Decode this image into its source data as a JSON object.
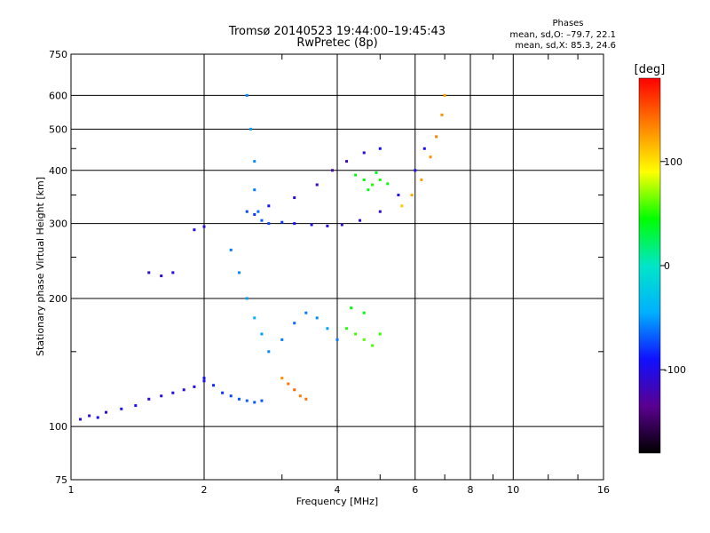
{
  "chart_data": {
    "type": "scatter",
    "title": "Tromsø 20140523 19:44:00–19:45:43",
    "subtitle": "RwPretec (8p)",
    "stats": {
      "header": "Phases",
      "line1": "mean, sd,O: –79.7, 22.1",
      "line2": "mean, sd,X:  85.3, 24.6"
    },
    "xlabel": "Frequency [MHz]",
    "ylabel": "Stationary phase Virtual Height [km]",
    "x_scale": "log",
    "y_scale": "log",
    "xlim": [
      1,
      16
    ],
    "ylim": [
      75,
      750
    ],
    "x_ticks": [
      1,
      2,
      4,
      6,
      8,
      10,
      16
    ],
    "x_minor_ticks": [
      3,
      5,
      7,
      9,
      12,
      14
    ],
    "y_ticks": [
      75,
      100,
      200,
      300,
      400,
      500,
      600,
      750
    ],
    "y_minor_ticks": [
      150,
      250,
      350,
      450
    ],
    "grid": true,
    "colorbar": {
      "label": "[deg]",
      "range": [
        -180,
        180
      ],
      "ticks": [
        100,
        0,
        -100
      ],
      "colors": [
        "#000000",
        "#5a0090",
        "#1010ff",
        "#00b0ff",
        "#00e6c8",
        "#00ff00",
        "#ffff00",
        "#ff8000",
        "#ff0000"
      ]
    },
    "series": [
      {
        "points": [
          [
            1.05,
            104,
            -100
          ],
          [
            1.1,
            106,
            -105
          ],
          [
            1.15,
            105,
            -95
          ],
          [
            1.2,
            108,
            -110
          ],
          [
            1.3,
            110,
            -100
          ],
          [
            1.4,
            112,
            -95
          ],
          [
            1.5,
            116,
            -105
          ],
          [
            1.6,
            118,
            -100
          ],
          [
            1.7,
            120,
            -98
          ],
          [
            1.8,
            122,
            -102
          ],
          [
            1.9,
            124,
            -100
          ],
          [
            2.0,
            128,
            -95
          ]
        ]
      },
      {
        "points": [
          [
            2.0,
            130,
            -90
          ],
          [
            2.1,
            125,
            -85
          ],
          [
            2.2,
            120,
            -80
          ],
          [
            2.3,
            118,
            -75
          ],
          [
            2.4,
            116,
            -70
          ],
          [
            2.5,
            115,
            -68
          ],
          [
            2.6,
            114,
            -70
          ],
          [
            2.7,
            115,
            -72
          ]
        ]
      },
      {
        "points": [
          [
            2.5,
            600,
            -55
          ],
          [
            2.55,
            500,
            -50
          ],
          [
            2.6,
            420,
            -55
          ],
          [
            2.6,
            360,
            -60
          ],
          [
            2.65,
            320,
            -65
          ],
          [
            2.7,
            305,
            -70
          ],
          [
            2.8,
            300,
            -75
          ],
          [
            3.0,
            302,
            -80
          ],
          [
            3.2,
            300,
            -90
          ],
          [
            3.5,
            298,
            -100
          ],
          [
            3.8,
            296,
            -105
          ],
          [
            4.1,
            298,
            -110
          ],
          [
            4.5,
            305,
            -108
          ],
          [
            5.0,
            320,
            -105
          ],
          [
            5.5,
            350,
            -100
          ],
          [
            6.0,
            400,
            -98
          ],
          [
            6.3,
            450,
            -95
          ]
        ]
      },
      {
        "points": [
          [
            2.5,
            320,
            -75
          ],
          [
            2.6,
            315,
            -80
          ],
          [
            2.8,
            330,
            -90
          ],
          [
            3.2,
            345,
            -110
          ],
          [
            3.6,
            370,
            -120
          ],
          [
            3.9,
            400,
            -125
          ],
          [
            4.2,
            420,
            -120
          ],
          [
            4.6,
            440,
            -100
          ],
          [
            5.0,
            450,
            -90
          ]
        ]
      },
      {
        "points": [
          [
            4.4,
            390,
            40
          ],
          [
            4.6,
            380,
            45
          ],
          [
            4.8,
            370,
            50
          ],
          [
            5.0,
            380,
            48
          ],
          [
            5.2,
            372,
            45
          ],
          [
            4.7,
            360,
            42
          ],
          [
            4.9,
            395,
            40
          ]
        ]
      },
      {
        "points": [
          [
            5.6,
            330,
            110
          ],
          [
            5.9,
            350,
            120
          ],
          [
            6.2,
            380,
            125
          ],
          [
            6.5,
            430,
            130
          ],
          [
            6.7,
            480,
            135
          ],
          [
            6.9,
            540,
            130
          ],
          [
            7.0,
            600,
            125
          ]
        ]
      },
      {
        "points": [
          [
            2.3,
            260,
            -60
          ],
          [
            2.4,
            230,
            -55
          ],
          [
            2.5,
            200,
            -50
          ],
          [
            2.6,
            180,
            -45
          ],
          [
            2.7,
            165,
            -50
          ],
          [
            2.8,
            150,
            -55
          ],
          [
            3.0,
            160,
            -60
          ],
          [
            3.2,
            175,
            -65
          ],
          [
            3.4,
            185,
            -60
          ],
          [
            3.6,
            180,
            -55
          ],
          [
            3.8,
            170,
            -50
          ],
          [
            4.0,
            160,
            -60
          ]
        ]
      },
      {
        "points": [
          [
            4.2,
            170,
            50
          ],
          [
            4.4,
            165,
            55
          ],
          [
            4.6,
            160,
            60
          ],
          [
            4.8,
            155,
            58
          ],
          [
            5.0,
            165,
            55
          ],
          [
            4.3,
            190,
            45
          ],
          [
            4.6,
            185,
            40
          ]
        ]
      },
      {
        "points": [
          [
            3.0,
            130,
            130
          ],
          [
            3.1,
            126,
            140
          ],
          [
            3.2,
            122,
            145
          ],
          [
            3.3,
            118,
            135
          ],
          [
            3.4,
            116,
            140
          ]
        ]
      },
      {
        "points": [
          [
            1.5,
            230,
            -110
          ],
          [
            1.6,
            226,
            -105
          ],
          [
            1.7,
            230,
            -100
          ],
          [
            1.9,
            290,
            -100
          ],
          [
            2.0,
            295,
            -105
          ]
        ]
      }
    ]
  }
}
